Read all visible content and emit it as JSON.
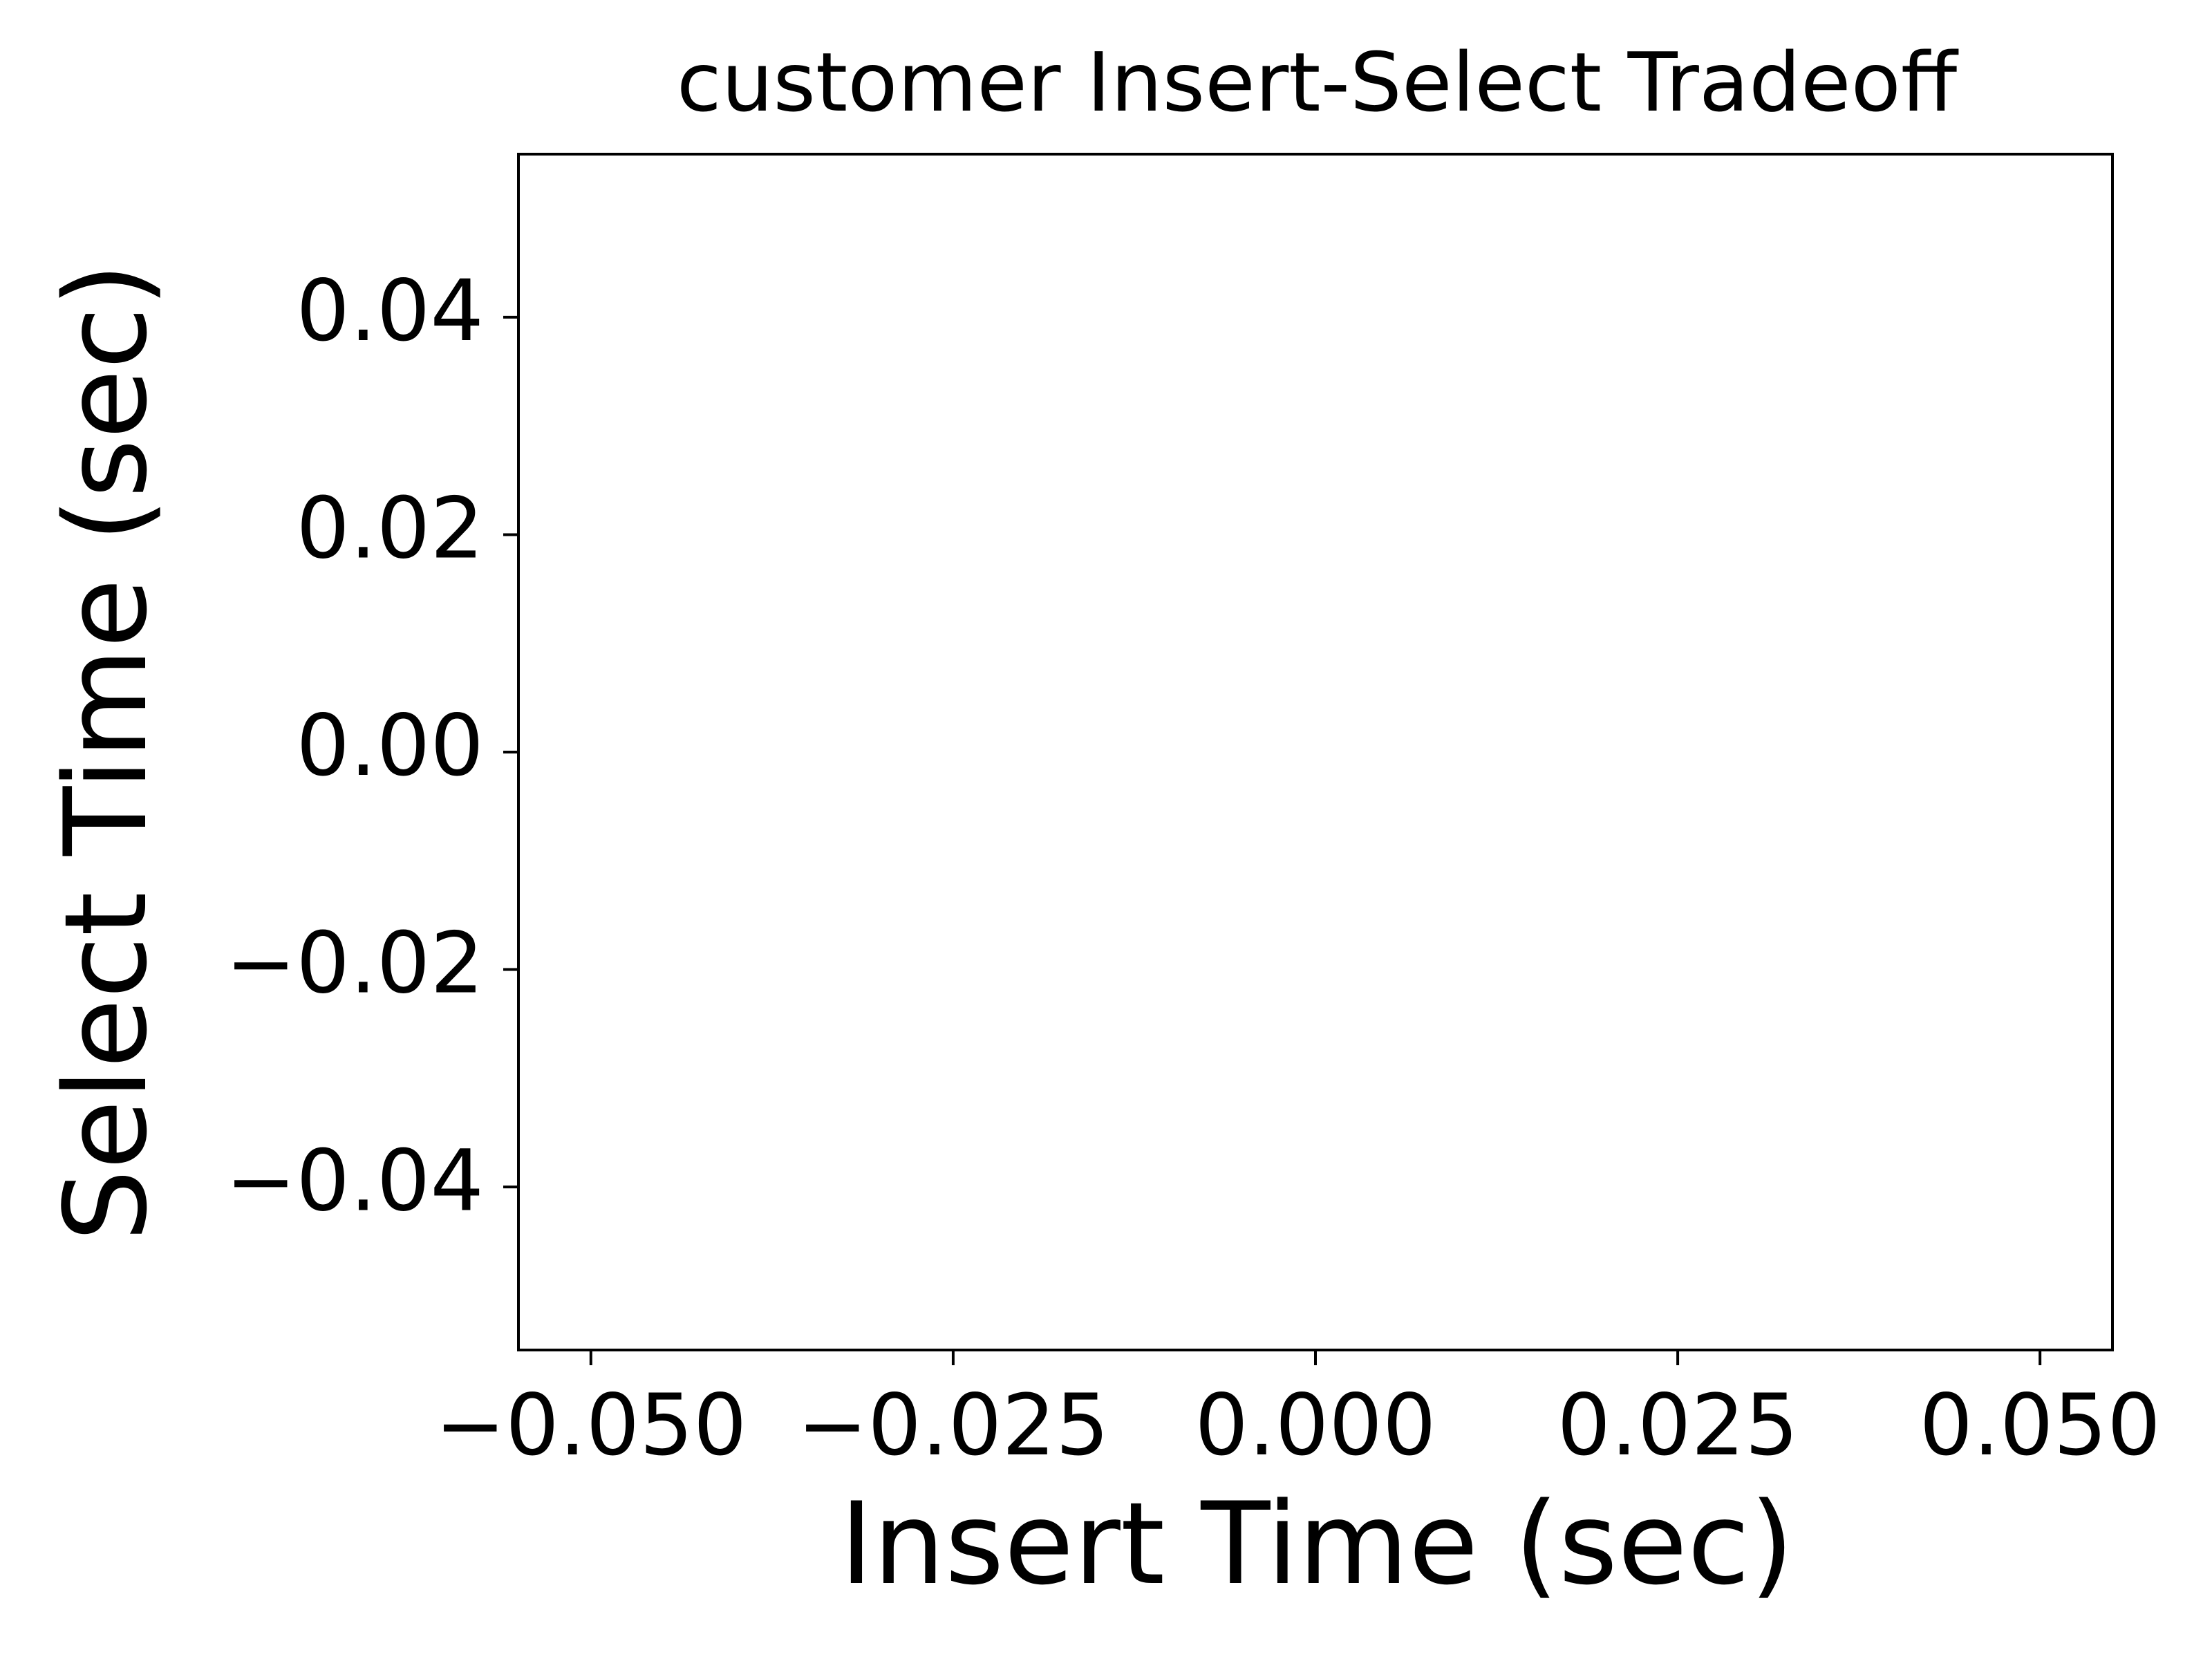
{
  "chart_data": {
    "type": "scatter",
    "title": "customer Insert-Select Tradeoff",
    "xlabel": "Insert Time (sec)",
    "ylabel": "Select Time (sec)",
    "xlim": [
      -0.055,
      0.055
    ],
    "ylim": [
      -0.055,
      0.055
    ],
    "x_ticks": [
      -0.05,
      -0.025,
      0.0,
      0.025,
      0.05
    ],
    "x_tick_labels": [
      "−0.050",
      "−0.025",
      "0.000",
      "0.025",
      "0.050"
    ],
    "y_ticks": [
      -0.04,
      -0.02,
      0.0,
      0.02,
      0.04
    ],
    "y_tick_labels": [
      "−0.04",
      "−0.02",
      "0.00",
      "0.02",
      "0.04"
    ],
    "series": [],
    "grid": false,
    "legend": "none",
    "colors": {
      "axes": "#000000",
      "background": "#ffffff"
    }
  }
}
